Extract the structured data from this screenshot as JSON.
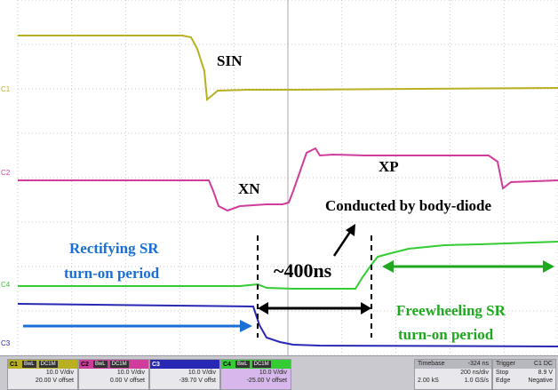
{
  "annotations": {
    "sin": "SIN",
    "xn": "XN",
    "xp": "XP",
    "body_diode": "Conducted by body-diode",
    "rect_line1": "Rectifying SR",
    "rect_line2": "turn-on period",
    "dur": "~400ns",
    "free_line1": "Freewheeling SR",
    "free_line2": "turn-on period"
  },
  "trace_labels": {
    "c1": "C1",
    "c2": "C2",
    "c3": "C3",
    "c4": "C4"
  },
  "colors": {
    "c1": "#b8b020",
    "c2": "#d03c9c",
    "c3": "#2828b4",
    "c4": "#33cc33",
    "blue_text": "#1a6fd6",
    "green_text": "#1fa81f",
    "grid": "#b4b4b4"
  },
  "channels": [
    {
      "tag": "C1",
      "badge1": "BwL",
      "badge2": "DC1M",
      "vdiv": "10.0 V/div",
      "offset": "20.00 V offset"
    },
    {
      "tag": "C2",
      "badge1": "BwL",
      "badge2": "DC1M",
      "vdiv": "10.0 V/div",
      "offset": "0.00 V offset"
    },
    {
      "tag": "C3",
      "badge1": "",
      "badge2": "",
      "vdiv": "10.0 V/div",
      "offset": "-39.70 V offst"
    },
    {
      "tag": "C4",
      "badge1": "BwL",
      "badge2": "DC1M",
      "vdiv": "10.0 V/div",
      "offset": "-25.00 V offset"
    }
  ],
  "timebase": {
    "label": "Timebase",
    "delay": "-324 ns",
    "tdiv": "200 ns/div",
    "samples": "2.00 kS",
    "rate": "1.0 GS/s"
  },
  "trigger": {
    "label": "Trigger",
    "channels": "C1 DC",
    "level": "8.9 V",
    "mode": "Stop",
    "edge": "Edge",
    "slope": "Negative"
  }
}
